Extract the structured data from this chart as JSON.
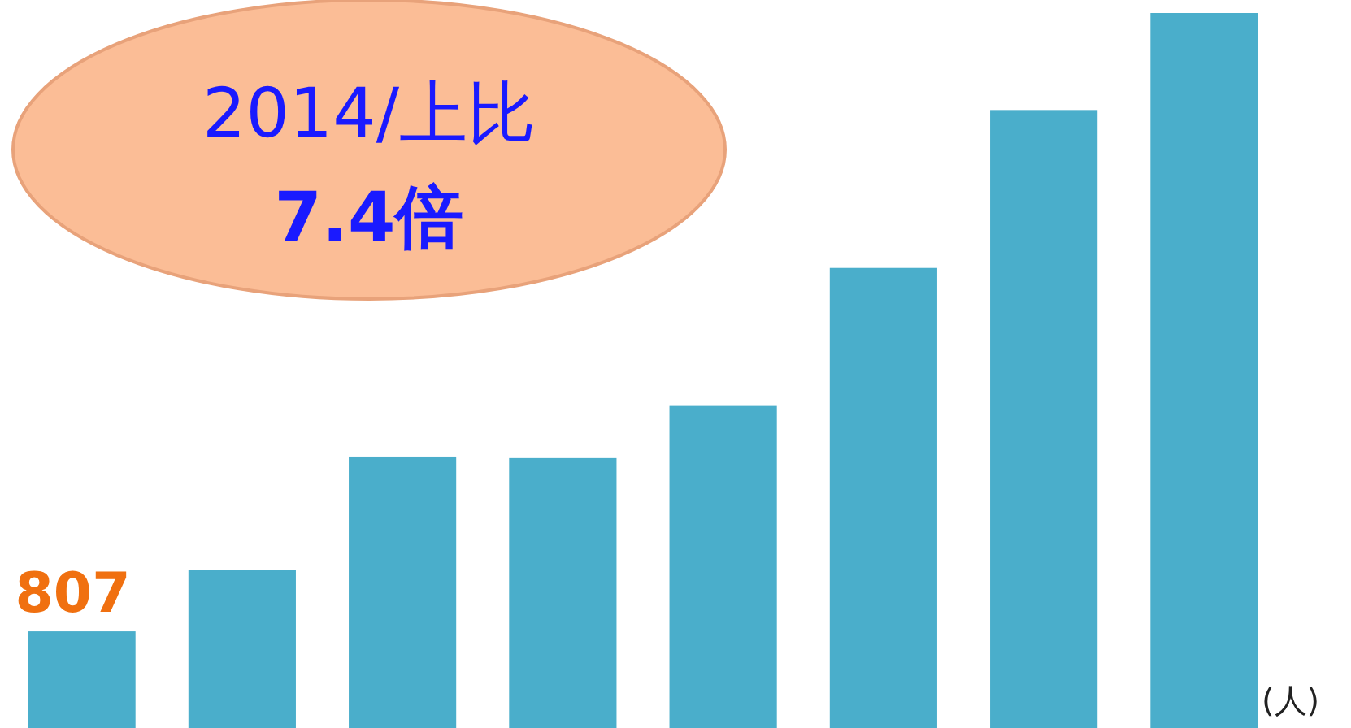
{
  "chart_data": {
    "type": "bar",
    "categories": [
      null,
      null,
      null,
      null,
      null,
      null,
      null,
      null
    ],
    "values": [
      807,
      1319,
      2267,
      2254,
      2690,
      3843,
      5162,
      5972
    ],
    "value_labels": [
      "807",
      null,
      null,
      null,
      null,
      null,
      null,
      null
    ],
    "color": "#4aaecb",
    "ylabel": "(人)",
    "annotations": [
      "2014/上比",
      "**7.4倍**"
    ]
  }
}
